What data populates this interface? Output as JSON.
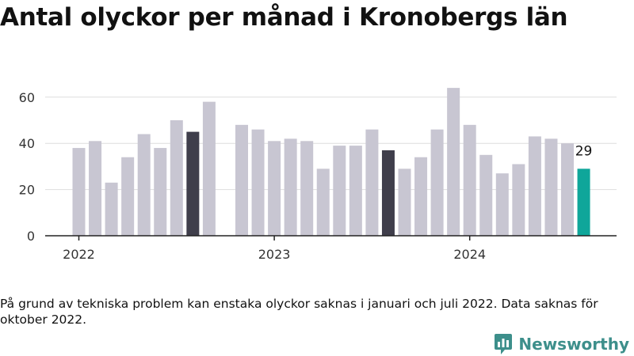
{
  "title": "Antal olyckor per månad i Kronobergs län",
  "footnote": "På grund av tekniska problem kan enstaka olyckor saknas i januari och juli 2022. Data saknas för oktober 2022.",
  "brand": "Newsworthy",
  "colors": {
    "bar": "#c8c6d2",
    "highlight": "#3f3e4b",
    "latest": "#0fa69a",
    "grid": "#dedede",
    "axis": "#222222",
    "brand": "#3d8f8b"
  },
  "chart_data": {
    "type": "bar",
    "title": "Antal olyckor per månad i Kronobergs län",
    "xlabel": "",
    "ylabel": "",
    "ylim": [
      0,
      70
    ],
    "yticks": [
      0,
      20,
      40,
      60
    ],
    "grid": true,
    "x_tick_labels": [
      "2022",
      "2023",
      "2024"
    ],
    "categories": [
      "2022-01",
      "2022-02",
      "2022-03",
      "2022-04",
      "2022-05",
      "2022-06",
      "2022-07",
      "2022-08",
      "2022-09",
      "2022-10",
      "2022-11",
      "2022-12",
      "2023-01",
      "2023-02",
      "2023-03",
      "2023-04",
      "2023-05",
      "2023-06",
      "2023-07",
      "2023-08",
      "2023-09",
      "2023-10",
      "2023-11",
      "2023-12",
      "2024-01",
      "2024-02",
      "2024-03",
      "2024-04",
      "2024-05",
      "2024-06",
      "2024-07",
      "2024-08"
    ],
    "values": [
      38,
      41,
      23,
      34,
      44,
      38,
      50,
      45,
      58,
      null,
      48,
      46,
      41,
      42,
      41,
      29,
      39,
      39,
      46,
      37,
      29,
      34,
      46,
      64,
      48,
      35,
      27,
      31,
      43,
      42,
      40,
      29
    ],
    "highlighted": [
      "2022-08",
      "2023-08"
    ],
    "latest": "2024-08",
    "latest_label": "29"
  }
}
